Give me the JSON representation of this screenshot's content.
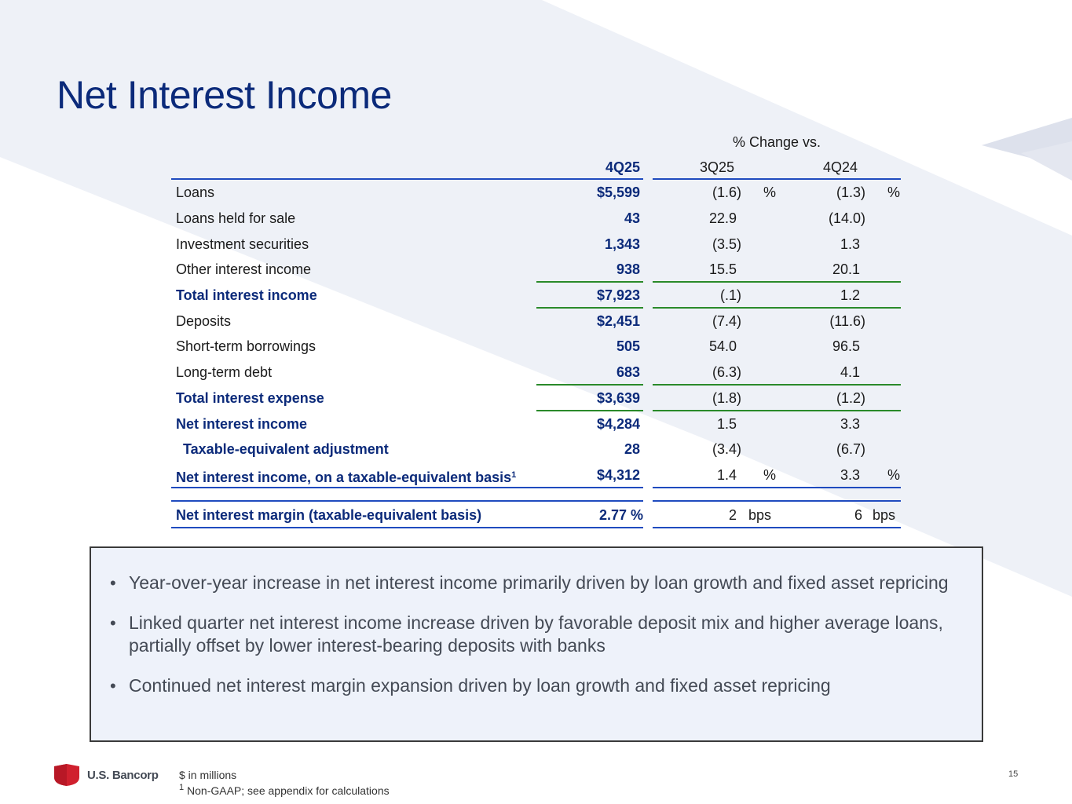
{
  "title": "Net Interest Income",
  "table": {
    "group_header": "% Change vs.",
    "col_headers": {
      "current": "4Q25",
      "prior_q": "3Q25",
      "prior_y": "4Q24"
    },
    "rows": [
      {
        "label": "Loans",
        "value": "$5,599",
        "chg_q": "(1.6)",
        "chg_q_unit": "%",
        "chg_y": "(1.3)",
        "chg_y_unit": "%"
      },
      {
        "label": "Loans held for sale",
        "value": "43",
        "chg_q": "22.9",
        "chg_y": "(14.0)"
      },
      {
        "label": "Investment securities",
        "value": "1,343",
        "chg_q": "(3.5)",
        "chg_y": "1.3"
      },
      {
        "label": "Other interest income",
        "value": "938",
        "chg_q": "15.5",
        "chg_y": "20.1"
      },
      {
        "label": "Total interest income",
        "value": "$7,923",
        "chg_q": "(.1)",
        "chg_y": "1.2"
      },
      {
        "label": "Deposits",
        "value": "$2,451",
        "chg_q": "(7.4)",
        "chg_y": "(11.6)"
      },
      {
        "label": "Short-term borrowings",
        "value": "505",
        "chg_q": "54.0",
        "chg_y": "96.5"
      },
      {
        "label": "Long-term debt",
        "value": "683",
        "chg_q": "(6.3)",
        "chg_y": "4.1"
      },
      {
        "label": "Total interest expense",
        "value": "$3,639",
        "chg_q": "(1.8)",
        "chg_y": "(1.2)"
      },
      {
        "label": "Net interest income",
        "value": "$4,284",
        "chg_q": "1.5",
        "chg_y": "3.3"
      },
      {
        "label": "Taxable-equivalent adjustment",
        "value": "28",
        "chg_q": "(3.4)",
        "chg_y": "(6.7)"
      },
      {
        "label": "Net interest income, on a taxable-equivalent basis",
        "label_sup": "1",
        "value": "$4,312",
        "chg_q": "1.4",
        "chg_q_unit": "%",
        "chg_y": "3.3",
        "chg_y_unit": "%"
      },
      {
        "label": "Net interest margin (taxable-equivalent basis)",
        "value": "2.77 %",
        "chg_q": "2",
        "chg_q_unit": "bps",
        "chg_y": "6",
        "chg_y_unit": "bps"
      }
    ]
  },
  "bullets": [
    "Year-over-year increase in net interest income primarily driven by loan growth and fixed asset repricing",
    "Linked quarter net interest income increase driven by favorable deposit mix and higher average loans, partially offset by lower interest-bearing deposits with banks",
    "Continued net interest margin expansion driven by loan growth and fixed asset repricing"
  ],
  "footer": {
    "brand": "U.S. Bancorp",
    "note1": "$ in millions",
    "note2_sup": "1",
    "note2": "Non-GAAP; see appendix for calculations",
    "page_number": "15"
  },
  "colors": {
    "title_blue": "#0b2a7a",
    "rule_blue": "#1f4bbf",
    "rule_green": "#2a8a2a",
    "logo_red": "#d0202e",
    "callout_bg": "#eef2fa"
  }
}
